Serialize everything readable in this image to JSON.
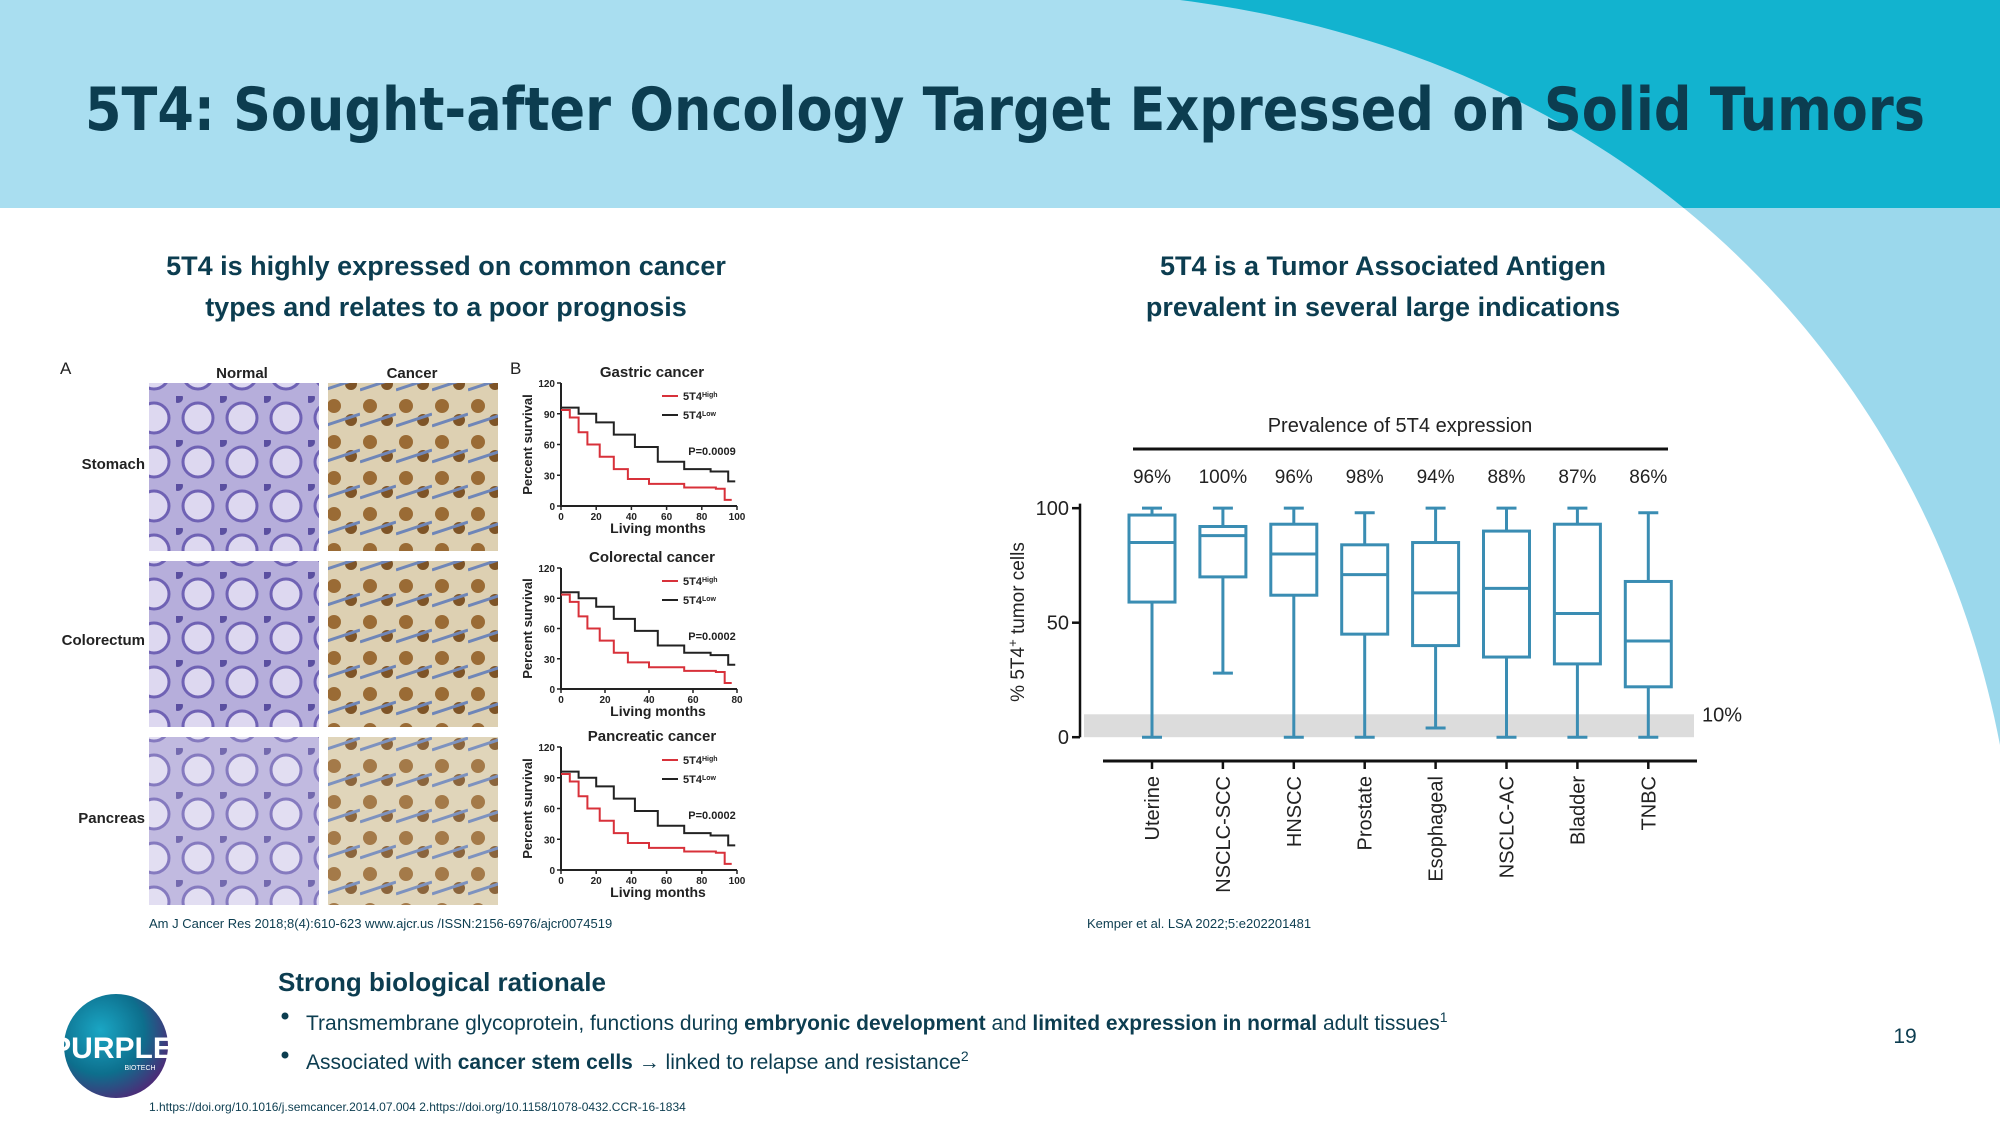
{
  "header": {
    "title": "5T4: Sought-after Oncology Target Expressed on Solid Tumors"
  },
  "left_panel": {
    "heading": [
      "5T4 is highly expressed on common cancer",
      "types and relates to a poor prognosis"
    ],
    "figure": {
      "panel_a": "A",
      "panel_b": "B",
      "columns": [
        "Normal",
        "Cancer"
      ],
      "rows": [
        "Stomach",
        "Colorectum",
        "Pancreas"
      ],
      "plots": [
        {
          "title": "Gastric cancer",
          "legend": [
            {
              "base": "5T4",
              "sup": "High"
            },
            {
              "base": "5T4",
              "sup": "Low"
            }
          ],
          "p_value": "P=0.0009",
          "yticks": [
            "0",
            "30",
            "60",
            "90",
            "120"
          ],
          "xticks": [
            "0",
            "20",
            "40",
            "60",
            "80",
            "100"
          ],
          "xlabel": "Living months",
          "ylabel": "Percent survival"
        },
        {
          "title": "Colorectal cancer",
          "legend": [
            {
              "base": "5T4",
              "sup": "High"
            },
            {
              "base": "5T4",
              "sup": "Low"
            }
          ],
          "p_value": "P=0.0002",
          "yticks": [
            "0",
            "30",
            "60",
            "90",
            "120"
          ],
          "xticks": [
            "0",
            "20",
            "40",
            "60",
            "80"
          ],
          "xlabel": "Living months",
          "ylabel": "Percent survival"
        },
        {
          "title": "Pancreatic cancer",
          "legend": [
            {
              "base": "5T4",
              "sup": "High"
            },
            {
              "base": "5T4",
              "sup": "Low"
            }
          ],
          "p_value": "P=0.0002",
          "yticks": [
            "0",
            "30",
            "60",
            "90",
            "120"
          ],
          "xticks": [
            "0",
            "20",
            "40",
            "60",
            "80",
            "100"
          ],
          "xlabel": "Living months",
          "ylabel": "Percent survival"
        }
      ]
    },
    "citation": "Am J Cancer Res 2018;8(4):610-623 www.ajcr.us /ISSN:2156-6976/ajcr0074519"
  },
  "right_panel": {
    "heading": [
      "5T4 is a Tumor Associated Antigen",
      "prevalent in several large indications"
    ],
    "citation": "Kemper et al. LSA 2022;5:e202201481"
  },
  "chart_data": {
    "type": "box",
    "title": "Prevalence of 5T4 expression",
    "categories": [
      "Uterine",
      "NSCLC-SCC",
      "HNSCC",
      "Prostate",
      "Esophageal",
      "NSCLC-AC",
      "Bladder",
      "TNBC"
    ],
    "prevalence_labels": [
      "96%",
      "100%",
      "96%",
      "98%",
      "94%",
      "88%",
      "87%",
      "86%"
    ],
    "ylabel": [
      "% 5T4",
      "+",
      " tumor cells"
    ],
    "boxes": [
      {
        "whislo": 0,
        "q1": 59,
        "med": 85,
        "q3": 97,
        "whishi": 100
      },
      {
        "whislo": 28,
        "q1": 70,
        "med": 88,
        "q3": 92,
        "whishi": 100
      },
      {
        "whislo": 0,
        "q1": 62,
        "med": 80,
        "q3": 93,
        "whishi": 100
      },
      {
        "whislo": 0,
        "q1": 45,
        "med": 71,
        "q3": 84,
        "whishi": 98
      },
      {
        "whislo": 4,
        "q1": 40,
        "med": 63,
        "q3": 85,
        "whishi": 100
      },
      {
        "whislo": 0,
        "q1": 35,
        "med": 65,
        "q3": 90,
        "whishi": 100
      },
      {
        "whislo": 0,
        "q1": 32,
        "med": 54,
        "q3": 93,
        "whishi": 100
      },
      {
        "whislo": 0,
        "q1": 22,
        "med": 42,
        "q3": 68,
        "whishi": 98
      }
    ],
    "color": "#3a8db3",
    "ylim": [
      -10,
      102
    ],
    "yticks": [
      0,
      50,
      100
    ],
    "threshold": {
      "value": 10,
      "label": "10%"
    }
  },
  "bottom": {
    "heading": "Strong biological rationale",
    "bullets": [
      [
        {
          "text": "Transmembrane glycoprotein, functions during "
        },
        {
          "text": "embryonic development",
          "bold": true
        },
        {
          "text": " and "
        },
        {
          "text": "limited expression in normal",
          "bold": true
        },
        {
          "text": " adult tissues"
        },
        {
          "text": "1",
          "sup": true
        }
      ],
      [
        {
          "text": "Associated with "
        },
        {
          "text": "cancer stem cells",
          "bold": true
        },
        {
          "text": " → linked to relapse and resistance"
        },
        {
          "text": "2",
          "sup": true
        }
      ]
    ],
    "footnotes": "1.https://doi.org/10.1016/j.semcancer.2014.07.004  2.https://doi.org/10.1158/1078-0432.CCR-16-1834",
    "page_number": "19",
    "logo": {
      "name": "PURPLE",
      "sub": "BIOTECH"
    }
  }
}
